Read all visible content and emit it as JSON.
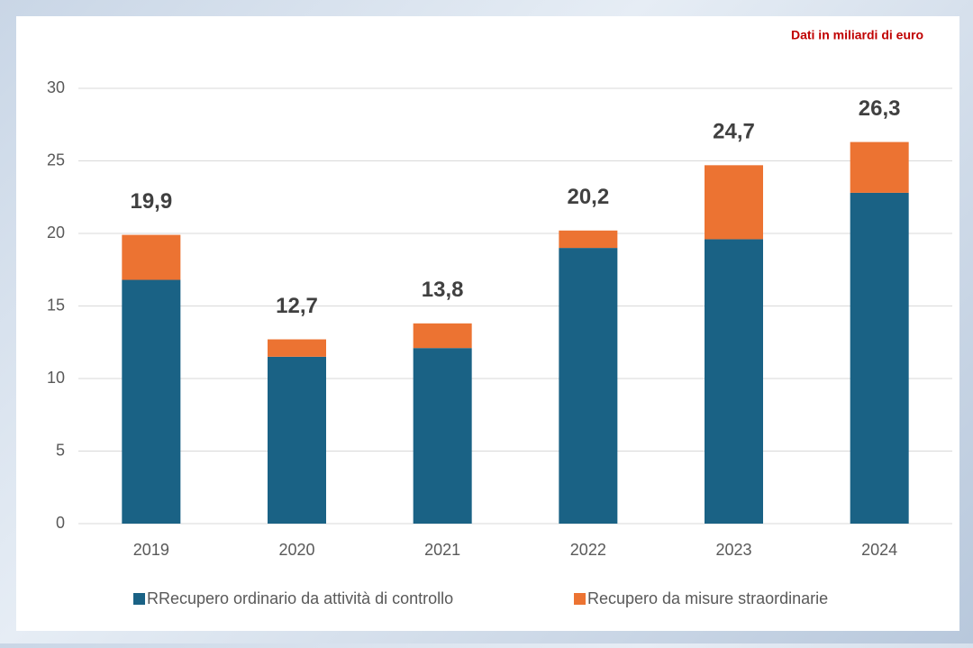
{
  "chart_data": {
    "type": "stacked_bar",
    "subtitle": "Dati in miliardi di euro",
    "categories": [
      "2019",
      "2020",
      "2021",
      "2022",
      "2023",
      "2024"
    ],
    "series": [
      {
        "name": "RRecupero ordinario da attività di controllo",
        "color": "#1a6285",
        "values": [
          16.8,
          11.5,
          12.1,
          19.0,
          19.6,
          22.8
        ]
      },
      {
        "name": "Recupero da misure straordinarie",
        "color": "#ec7332",
        "values": [
          3.1,
          1.2,
          1.7,
          1.2,
          5.1,
          3.5
        ]
      }
    ],
    "totals": [
      19.9,
      12.7,
      13.8,
      20.2,
      24.7,
      26.3
    ],
    "total_labels": [
      "19,9",
      "12,7",
      "13,8",
      "20,2",
      "24,7",
      "26,3"
    ],
    "ylim": [
      0,
      30
    ],
    "yticks": [
      0,
      5,
      10,
      15,
      20,
      25,
      30
    ],
    "grid": true,
    "legend": "bottom"
  }
}
